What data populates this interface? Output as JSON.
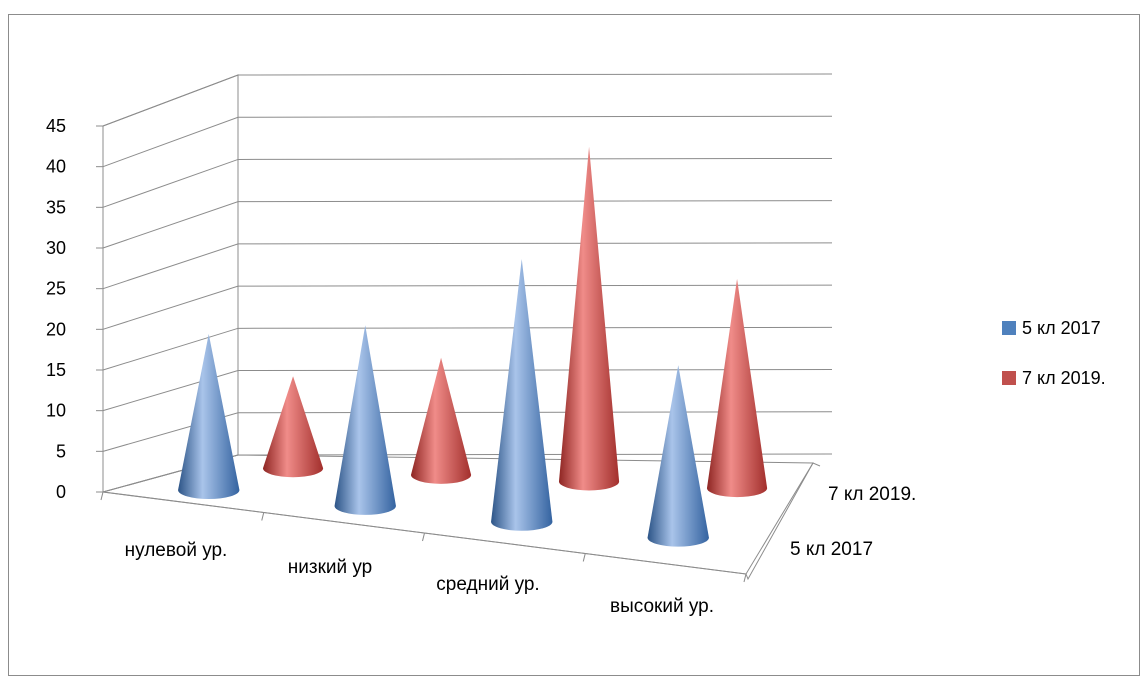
{
  "chart_data": {
    "type": "bar",
    "shape": "cone-3d",
    "categories": [
      "нулевой ур.",
      "низкий ур",
      "средний ур.",
      "высокий ур."
    ],
    "series": [
      {
        "name": "5 кл 2017",
        "color": "#4f81bd",
        "values": [
          19,
          22,
          32,
          21
        ]
      },
      {
        "name": "7 кл 2019.",
        "color": "#c0504d",
        "values": [
          11,
          14,
          40,
          25
        ]
      }
    ],
    "depth_labels": [
      "7 кл 2019.",
      "5 кл 2017"
    ],
    "yticks": [
      "0",
      "5",
      "10",
      "15",
      "20",
      "25",
      "30",
      "35",
      "40",
      "45"
    ],
    "ylim": [
      0,
      45
    ],
    "grid": true,
    "legend": "right"
  }
}
